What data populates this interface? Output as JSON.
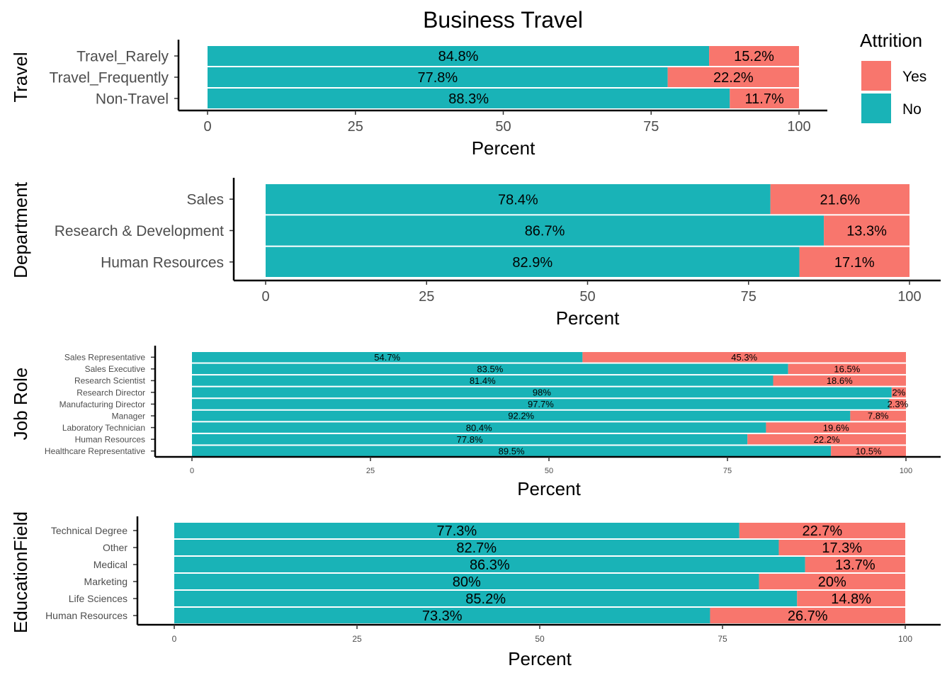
{
  "title": "Business Travel",
  "legend": {
    "title": "Attrition",
    "items": [
      {
        "label": "Yes",
        "color": "#F8766D"
      },
      {
        "label": "No",
        "color": "#19B3B7"
      }
    ]
  },
  "colors": {
    "no": "#19B3B7",
    "yes": "#F8766D"
  },
  "chart_data": [
    {
      "type": "bar",
      "stacked": true,
      "orientation": "horizontal",
      "ylabel": "Travel",
      "xlabel": "Percent",
      "xlim": [
        0,
        100
      ],
      "xticks": [
        0,
        25,
        50,
        75,
        100
      ],
      "categories": [
        "Travel_Rarely",
        "Travel_Frequently",
        "Non-Travel"
      ],
      "series": [
        {
          "name": "No",
          "values": [
            84.8,
            77.8,
            88.3
          ],
          "labels": [
            "84.8%",
            "77.8%",
            "88.3%"
          ]
        },
        {
          "name": "Yes",
          "values": [
            15.2,
            22.2,
            11.7
          ],
          "labels": [
            "15.2%",
            "22.2%",
            "11.7%"
          ]
        }
      ]
    },
    {
      "type": "bar",
      "stacked": true,
      "orientation": "horizontal",
      "ylabel": "Department",
      "xlabel": "Percent",
      "xlim": [
        0,
        100
      ],
      "xticks": [
        0,
        25,
        50,
        75,
        100
      ],
      "categories": [
        "Sales",
        "Research & Development",
        "Human Resources"
      ],
      "series": [
        {
          "name": "No",
          "values": [
            78.4,
            86.7,
            82.9
          ],
          "labels": [
            "78.4%",
            "86.7%",
            "82.9%"
          ]
        },
        {
          "name": "Yes",
          "values": [
            21.6,
            13.3,
            17.1
          ],
          "labels": [
            "21.6%",
            "13.3%",
            "17.1%"
          ]
        }
      ]
    },
    {
      "type": "bar",
      "stacked": true,
      "orientation": "horizontal",
      "ylabel": "Job Role",
      "xlabel": "Percent",
      "xlim": [
        0,
        100
      ],
      "xticks": [
        0,
        25,
        50,
        75,
        100
      ],
      "categories": [
        "Sales Representative",
        "Sales Executive",
        "Research Scientist",
        "Research Director",
        "Manufacturing Director",
        "Manager",
        "Laboratory Technician",
        "Human Resources",
        "Healthcare Representative"
      ],
      "series": [
        {
          "name": "No",
          "values": [
            54.7,
            83.5,
            81.4,
            98,
            97.7,
            92.2,
            80.4,
            77.8,
            89.5
          ],
          "labels": [
            "54.7%",
            "83.5%",
            "81.4%",
            "98%",
            "97.7%",
            "92.2%",
            "80.4%",
            "77.8%",
            "89.5%"
          ]
        },
        {
          "name": "Yes",
          "values": [
            45.3,
            16.5,
            18.6,
            2,
            2.3,
            7.8,
            19.6,
            22.2,
            10.5
          ],
          "labels": [
            "45.3%",
            "16.5%",
            "18.6%",
            "2%",
            "2.3%",
            "7.8%",
            "19.6%",
            "22.2%",
            "10.5%"
          ]
        }
      ]
    },
    {
      "type": "bar",
      "stacked": true,
      "orientation": "horizontal",
      "ylabel": "EducationField",
      "xlabel": "Percent",
      "xlim": [
        0,
        100
      ],
      "xticks": [
        0,
        25,
        50,
        75,
        100
      ],
      "categories": [
        "Technical Degree",
        "Other",
        "Medical",
        "Marketing",
        "Life Sciences",
        "Human Resources"
      ],
      "series": [
        {
          "name": "No",
          "values": [
            77.3,
            82.7,
            86.3,
            80,
            85.2,
            73.3
          ],
          "labels": [
            "77.3%",
            "82.7%",
            "86.3%",
            "80%",
            "85.2%",
            "73.3%"
          ]
        },
        {
          "name": "Yes",
          "values": [
            22.7,
            17.3,
            13.7,
            20,
            14.8,
            26.7
          ],
          "labels": [
            "22.7%",
            "17.3%",
            "13.7%",
            "20%",
            "14.8%",
            "26.7%"
          ]
        }
      ]
    }
  ]
}
